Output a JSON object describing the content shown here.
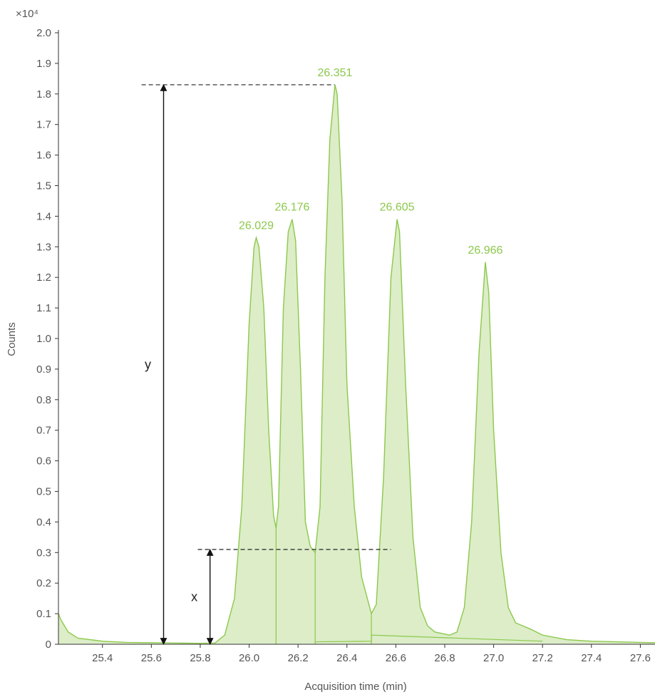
{
  "chart_data": {
    "type": "area",
    "title": "",
    "xlabel": "Acquisition time (min)",
    "ylabel": "Counts",
    "y_multiplier": "×10⁴",
    "xlim": [
      25.22,
      27.66
    ],
    "ylim": [
      0,
      2.0
    ],
    "x_ticks": [
      "25.4",
      "25.6",
      "25.8",
      "26.0",
      "26.2",
      "26.4",
      "26.6",
      "26.8",
      "27.0",
      "27.2",
      "27.4",
      "27.6"
    ],
    "y_ticks": [
      "0",
      "0.1",
      "0.2",
      "0.3",
      "0.4",
      "0.5",
      "0.6",
      "0.7",
      "0.8",
      "0.9",
      "1.0",
      "1.1",
      "1.2",
      "1.3",
      "1.4",
      "1.5",
      "1.6",
      "1.7",
      "1.8",
      "1.9",
      "2.0"
    ],
    "grid": false,
    "color": "#8cc84b",
    "fill_color": "#dcedc8",
    "series": [
      {
        "x": [
          25.22,
          25.23,
          25.26,
          25.3,
          25.35,
          25.4,
          25.45,
          25.5,
          25.6,
          25.7,
          25.8,
          25.86,
          25.9,
          25.94,
          25.97,
          26.0,
          26.02,
          26.029,
          26.04,
          26.06,
          26.08,
          26.1,
          26.11,
          26.12,
          26.14,
          26.16,
          26.176,
          26.19,
          26.21,
          26.23,
          26.25,
          26.27,
          26.29,
          26.31,
          26.33,
          26.351,
          26.36,
          26.38,
          26.4,
          26.43,
          26.46,
          26.49,
          26.5,
          26.52,
          26.55,
          26.58,
          26.605,
          26.615,
          26.64,
          26.67,
          26.7,
          26.73,
          26.76,
          26.79,
          26.82,
          26.85,
          26.88,
          26.91,
          26.94,
          26.966,
          26.98,
          27.0,
          27.03,
          27.06,
          27.09,
          27.12,
          27.15,
          27.2,
          27.3,
          27.4,
          27.5,
          27.6,
          27.66
        ],
        "y": [
          0.1,
          0.08,
          0.04,
          0.02,
          0.015,
          0.01,
          0.008,
          0.006,
          0.005,
          0.004,
          0.003,
          0.004,
          0.03,
          0.15,
          0.45,
          1.05,
          1.3,
          1.33,
          1.3,
          1.1,
          0.7,
          0.42,
          0.38,
          0.45,
          1.1,
          1.35,
          1.39,
          1.32,
          0.9,
          0.4,
          0.32,
          0.3,
          0.45,
          1.2,
          1.65,
          1.83,
          1.8,
          1.45,
          0.85,
          0.45,
          0.22,
          0.13,
          0.1,
          0.13,
          0.55,
          1.2,
          1.39,
          1.35,
          0.85,
          0.35,
          0.12,
          0.06,
          0.04,
          0.035,
          0.03,
          0.04,
          0.12,
          0.4,
          0.95,
          1.25,
          1.15,
          0.7,
          0.3,
          0.12,
          0.07,
          0.06,
          0.05,
          0.03,
          0.015,
          0.01,
          0.008,
          0.006,
          0.005
        ]
      }
    ],
    "integration_dividers": [
      {
        "x": 26.11,
        "y": 0.38
      },
      {
        "x": 26.27,
        "y": 0.3
      },
      {
        "x": 26.5,
        "y": 0.1
      }
    ],
    "integration_baseline": [
      {
        "x": 26.27,
        "y": 0.008
      },
      {
        "x": 26.5,
        "y": 0.01
      },
      {
        "x": 26.5,
        "y": 0.03
      },
      {
        "x": 27.2,
        "y": 0.01
      }
    ],
    "peak_labels": [
      {
        "text": "26.029",
        "x": 26.029,
        "y": 1.33
      },
      {
        "text": "26.176",
        "x": 26.176,
        "y": 1.39
      },
      {
        "text": "26.351",
        "x": 26.351,
        "y": 1.83
      },
      {
        "text": "26.605",
        "x": 26.605,
        "y": 1.39
      },
      {
        "text": "26.966",
        "x": 26.966,
        "y": 1.25
      }
    ],
    "annotations": [
      {
        "label": "y",
        "x": 25.65,
        "y_from": 0,
        "y_to": 1.83
      },
      {
        "label": "x",
        "x": 25.84,
        "y_from": 0,
        "y_to": 0.31
      }
    ],
    "dashed_lines": [
      {
        "x1": 25.56,
        "x2": 26.35,
        "y": 1.83
      },
      {
        "x1": 25.79,
        "x2": 26.58,
        "y": 0.31
      }
    ]
  }
}
